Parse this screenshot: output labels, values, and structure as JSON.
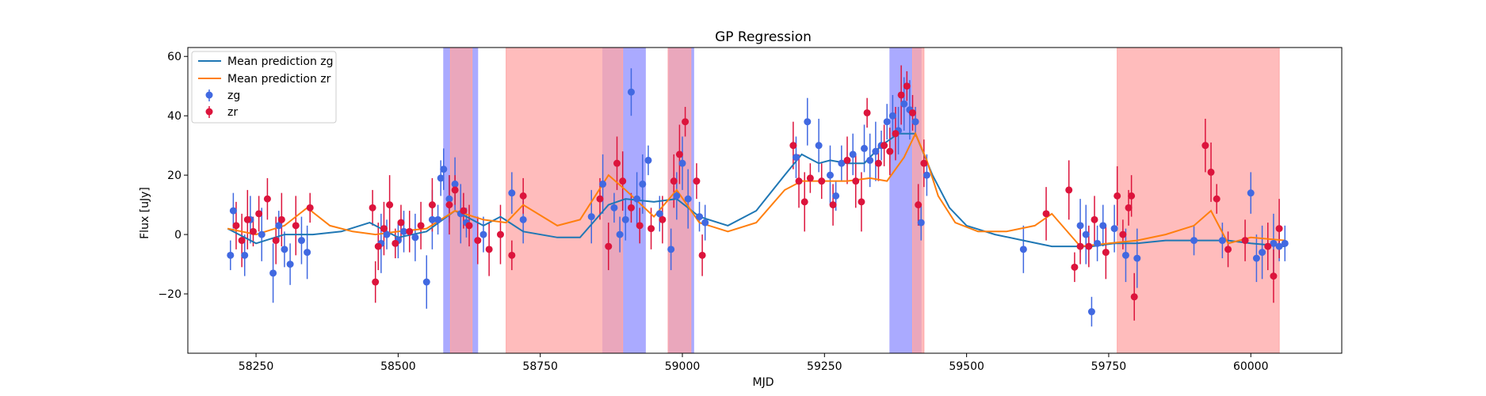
{
  "chart_data": {
    "type": "scatter",
    "title": "GP Regression",
    "xlabel": "MJD",
    "ylabel": "Flux [uJy]",
    "xlim": [
      58130,
      60160
    ],
    "ylim": [
      -40,
      63
    ],
    "xticks": [
      58250,
      58500,
      58750,
      59000,
      59250,
      59500,
      59750,
      60000
    ],
    "yticks": [
      -20,
      0,
      20,
      40,
      60
    ],
    "grid": false,
    "legend_position": "top-left",
    "colors": {
      "zg": "#4169e1",
      "zr": "#dc143c",
      "mean_zg": "#1f77b4",
      "mean_zr": "#ff7f0e",
      "band_zg": "#aaaaff",
      "band_zr": "#ffa6a6"
    },
    "bands": [
      {
        "filter": "zg",
        "x0": 58580,
        "x1": 58640
      },
      {
        "filter": "zg",
        "x0": 58860,
        "x1": 58935
      },
      {
        "filter": "zg",
        "x0": 58975,
        "x1": 59020
      },
      {
        "filter": "zg",
        "x0": 59365,
        "x1": 59420
      },
      {
        "filter": "zr",
        "x0": 58592,
        "x1": 58630
      },
      {
        "filter": "zr",
        "x0": 58690,
        "x1": 58895
      },
      {
        "filter": "zr",
        "x0": 58975,
        "x1": 59015
      },
      {
        "filter": "zr",
        "x0": 59405,
        "x1": 59425
      },
      {
        "filter": "zr",
        "x0": 59765,
        "x1": 60050
      }
    ],
    "series": [
      {
        "name": "Mean prediction zg",
        "kind": "line",
        "x": [
          58200,
          58250,
          58300,
          58350,
          58400,
          58450,
          58470,
          58500,
          58550,
          58600,
          58650,
          58680,
          58720,
          58780,
          58820,
          58870,
          58900,
          58950,
          58990,
          59030,
          59080,
          59130,
          59180,
          59210,
          59240,
          59260,
          59290,
          59320,
          59350,
          59380,
          59410,
          59440,
          59470,
          59500,
          59550,
          59600,
          59650,
          59700,
          59720,
          59760,
          59800,
          59850,
          59900,
          59930,
          59960,
          60000,
          60060
        ],
        "y": [
          2,
          -3,
          0,
          0,
          1,
          4,
          2,
          -1,
          1,
          8,
          3,
          6,
          1,
          -1,
          -1,
          10,
          12,
          11,
          12,
          6,
          3,
          8,
          20,
          27,
          24,
          25,
          24,
          24,
          30,
          34,
          34,
          20,
          9,
          3,
          0,
          -2,
          -4,
          -4,
          -4,
          -3,
          -3,
          -2,
          -2,
          -2,
          -2,
          -3,
          -4
        ]
      },
      {
        "name": "Mean prediction zr",
        "kind": "line",
        "x": [
          58200,
          58250,
          58300,
          58340,
          58380,
          58420,
          58460,
          58500,
          58550,
          58600,
          58650,
          58690,
          58720,
          58780,
          58820,
          58870,
          58900,
          58950,
          58990,
          59030,
          59080,
          59130,
          59180,
          59210,
          59250,
          59290,
          59330,
          59360,
          59390,
          59410,
          59430,
          59450,
          59480,
          59520,
          59570,
          59620,
          59650,
          59700,
          59750,
          59800,
          59850,
          59900,
          59930,
          59960,
          60000,
          60060
        ],
        "y": [
          2,
          0,
          3,
          9,
          3,
          1,
          0,
          1,
          2,
          8,
          5,
          4,
          10,
          3,
          5,
          20,
          15,
          6,
          15,
          4,
          1,
          4,
          15,
          18,
          18,
          18,
          19,
          18,
          26,
          34,
          25,
          13,
          4,
          1,
          1,
          3,
          7,
          -4,
          -3,
          -2,
          0,
          3,
          8,
          -3,
          -1,
          -2
        ]
      },
      {
        "name": "zg",
        "kind": "points",
        "x": [
          58205,
          58210,
          58230,
          58240,
          58260,
          58280,
          58290,
          58300,
          58310,
          58330,
          58340,
          58470,
          58480,
          58500,
          58510,
          58530,
          58550,
          58560,
          58570,
          58575,
          58580,
          58590,
          58600,
          58610,
          58620,
          58650,
          58700,
          58720,
          58840,
          58860,
          58880,
          58890,
          58900,
          58910,
          58920,
          58930,
          58940,
          58960,
          58980,
          58990,
          59000,
          59010,
          59030,
          59040,
          59200,
          59220,
          59240,
          59260,
          59270,
          59280,
          59300,
          59320,
          59330,
          59340,
          59350,
          59360,
          59370,
          59380,
          59390,
          59400,
          59410,
          59420,
          59430,
          59600,
          59700,
          59710,
          59720,
          59730,
          59740,
          59760,
          59780,
          59800,
          59900,
          59950,
          60000,
          60010,
          60020,
          60040,
          60050,
          60060
        ],
        "y": [
          -7,
          8,
          -7,
          5,
          0,
          -13,
          3,
          -5,
          -10,
          -2,
          -6,
          -3,
          0,
          -2,
          1,
          -1,
          -16,
          5,
          5,
          19,
          22,
          12,
          17,
          7,
          4,
          0,
          14,
          5,
          6,
          17,
          9,
          0,
          5,
          48,
          12,
          17,
          25,
          7,
          -5,
          13,
          24,
          12,
          6,
          4,
          26,
          38,
          30,
          20,
          13,
          24,
          27,
          29,
          25,
          28,
          30,
          38,
          40,
          35,
          44,
          42,
          38,
          4,
          20,
          -5,
          3,
          0,
          -26,
          -3,
          3,
          2,
          -7,
          -8,
          -2,
          -2,
          14,
          -8,
          -6,
          -3,
          -4,
          -3
        ]
      },
      {
        "name": "zr",
        "kind": "points",
        "x": [
          58215,
          58225,
          58235,
          58245,
          58255,
          58270,
          58285,
          58295,
          58320,
          58345,
          58455,
          58460,
          58465,
          58475,
          58485,
          58495,
          58505,
          58520,
          58540,
          58560,
          58590,
          58600,
          58615,
          58625,
          58640,
          58660,
          58680,
          58700,
          58720,
          58855,
          58870,
          58885,
          58895,
          58910,
          58925,
          58945,
          58965,
          58985,
          58995,
          59005,
          59025,
          59035,
          59195,
          59205,
          59215,
          59225,
          59245,
          59265,
          59290,
          59305,
          59315,
          59325,
          59345,
          59355,
          59365,
          59375,
          59385,
          59395,
          59405,
          59415,
          59425,
          59640,
          59680,
          59690,
          59700,
          59715,
          59725,
          59745,
          59765,
          59775,
          59785,
          59790,
          59795,
          59920,
          59930,
          59940,
          59960,
          59990,
          60030,
          60040,
          60050
        ],
        "y": [
          3,
          -2,
          5,
          1,
          7,
          12,
          -2,
          5,
          3,
          9,
          9,
          -16,
          -4,
          2,
          10,
          -3,
          4,
          1,
          3,
          10,
          10,
          15,
          8,
          3,
          -2,
          -5,
          0,
          -7,
          13,
          12,
          -4,
          24,
          18,
          9,
          3,
          2,
          5,
          18,
          27,
          38,
          18,
          -7,
          30,
          18,
          11,
          19,
          18,
          10,
          25,
          18,
          11,
          41,
          24,
          30,
          28,
          34,
          47,
          50,
          41,
          10,
          24,
          7,
          15,
          -11,
          -4,
          -4,
          5,
          -6,
          13,
          0,
          9,
          13,
          -21,
          30,
          21,
          12,
          -5,
          -2,
          -4,
          -14,
          2
        ]
      }
    ]
  }
}
